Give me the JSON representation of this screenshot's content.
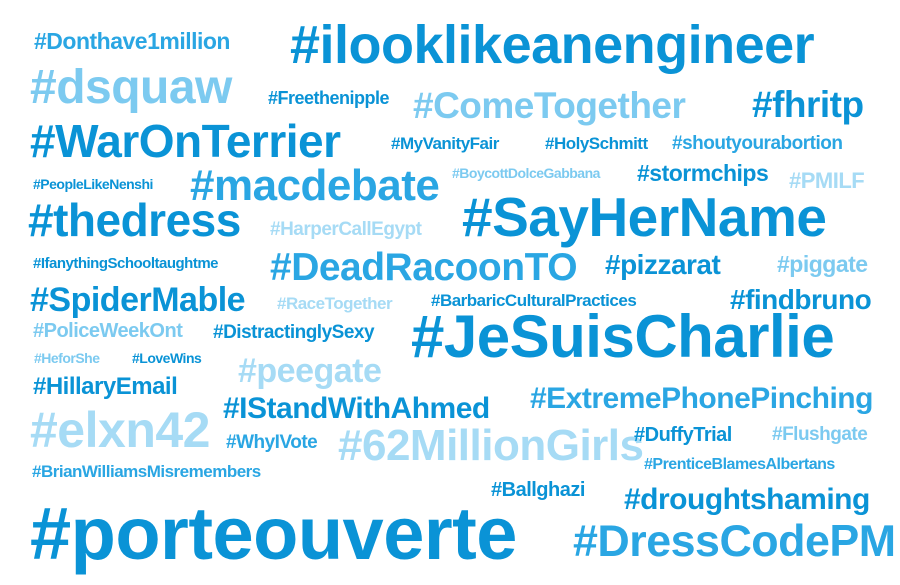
{
  "palette": {
    "tone_1": "#0a93d6",
    "tone_2": "#2aa6e3",
    "tone_3": "#7ccaf0",
    "tone_4": "#a6dbf5"
  },
  "hashtags": [
    "#Donthave1million",
    "#ilooklikeanengineer",
    "#dsquaw",
    "#Freethenipple",
    "#ComeTogether",
    "#fhritp",
    "#WarOnTerrier",
    "#MyVanityFair",
    "#HolySchmitt",
    "#shoutyourabortion",
    "#PeopleLikeNenshi",
    "#macdebate",
    "#BoycottDolceGabbana",
    "#stormchips",
    "#PMILF",
    "#thedress",
    "#HarperCallEgypt",
    "#SayHerName",
    "#IfanythingSchooltaughtme",
    "#DeadRacoonTO",
    "#pizzarat",
    "#piggate",
    "#SpiderMable",
    "#RaceTogether",
    "#BarbaricCulturalPractices",
    "#findbruno",
    "#PoliceWeekOnt",
    "#DistractinglySexy",
    "#JeSuisCharlie",
    "#HeforShe",
    "#LoveWins",
    "#peegate",
    "#HillaryEmail",
    "#IStandWithAhmed",
    "#ExtremePhonePinching",
    "#elxn42",
    "#WhyIVote",
    "#62MillionGirls",
    "#DuffyTrial",
    "#Flushgate",
    "#BrianWilliamsMisremembers",
    "#PrenticeBlamesAlbertans",
    "#Ballghazi",
    "#droughtshaming",
    "#porteouverte",
    "#DressCodePM"
  ]
}
